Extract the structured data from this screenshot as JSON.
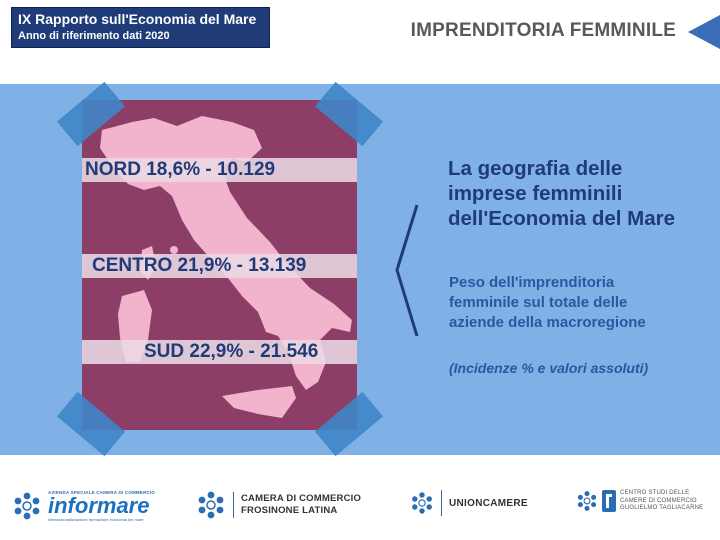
{
  "header": {
    "title": "IX Rapporto sull'Economia del Mare",
    "subtitle": "Anno di riferimento dati 2020",
    "section_title": "IMPRENDITORIA FEMMINILE"
  },
  "map": {
    "regions": [
      {
        "label": "NORD 18,6% - 10.129"
      },
      {
        "label": "CENTRO 21,9% - 13.139"
      },
      {
        "label": "SUD 22,9% - 21.546"
      }
    ]
  },
  "text": {
    "headline": "La geografia delle imprese femminili dell'Economia del Mare",
    "description": "Peso dell'imprenditoria femminile sul totale delle aziende della macroregione",
    "note": "(Incidenze % e valori assoluti)"
  },
  "footer": {
    "informare": {
      "small": "AZIENDA SPECIALE CAMERA DI COMMERCIO",
      "name": "informare",
      "tagline": "Internazionalizzazione formazione economia del mare"
    },
    "camera": {
      "line1": "CAMERA DI COMMERCIO",
      "line2": "FROSINONE LATINA"
    },
    "union": {
      "name": "UNIONCAMERE"
    },
    "centro": {
      "line1": "CENTRO STUDI DELLE",
      "line2": "CAMERE DI COMMERCIO",
      "line3": "GUGLIELMO TAGLIACARNE"
    }
  },
  "colors": {
    "header_bg": "#1f3b78",
    "band": "#7fb0e6",
    "map_card": "#8c3e66",
    "map_land": "#f2b3cc",
    "text_primary": "#1f3b78"
  }
}
